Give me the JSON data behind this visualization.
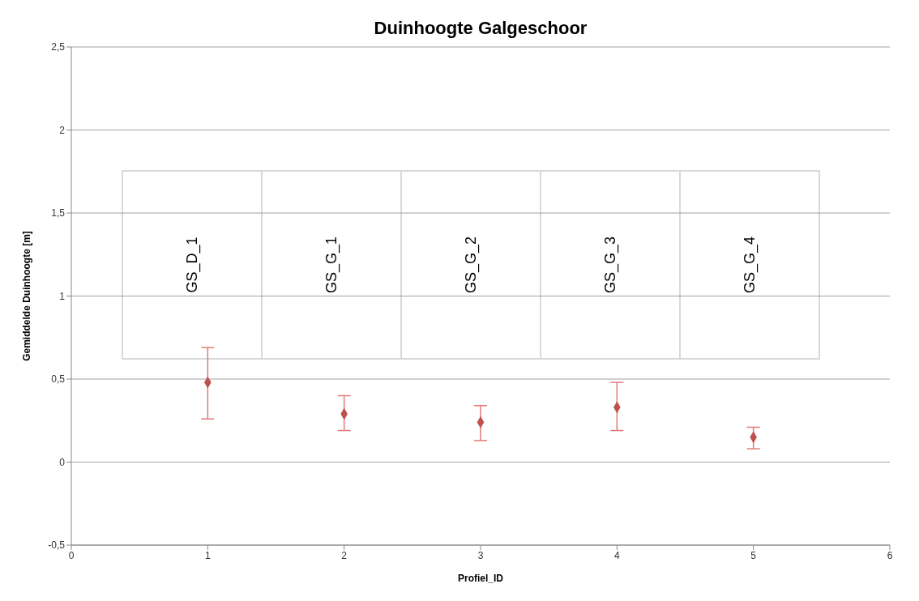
{
  "chart_data": {
    "type": "scatter",
    "title": "Duinhoogte Galgeschoor",
    "xlabel": "Profiel_ID",
    "ylabel": "Gemiddelde Duinhoogte [m]",
    "x": [
      1,
      2,
      3,
      4,
      5
    ],
    "series": [
      {
        "color": "#c0504d",
        "values": [
          0.48,
          0.29,
          0.24,
          0.33,
          0.15
        ],
        "errors": [
          [
            0.26,
            0.69
          ],
          [
            0.19,
            0.4
          ],
          [
            0.13,
            0.34
          ],
          [
            0.19,
            0.48
          ],
          [
            0.08,
            0.21
          ]
        ]
      }
    ],
    "annotations": [
      "GS_D_1",
      "GS_G_1",
      "GS_G_2",
      "GS_G_3",
      "GS_G_4"
    ],
    "xlim": [
      0,
      6
    ],
    "xticks": [
      0,
      1,
      2,
      3,
      4,
      5,
      6
    ],
    "ylim": [
      -0.5,
      2.5
    ],
    "yticks": [
      {
        "value": -0.5,
        "label": "-0,5"
      },
      0,
      {
        "value": 0.5,
        "label": "0,5"
      },
      1,
      {
        "value": 1.5,
        "label": "1,5"
      },
      2,
      {
        "value": 2.5,
        "label": "2,5"
      }
    ],
    "grid": "y",
    "legend": false,
    "marker": "diamond"
  }
}
